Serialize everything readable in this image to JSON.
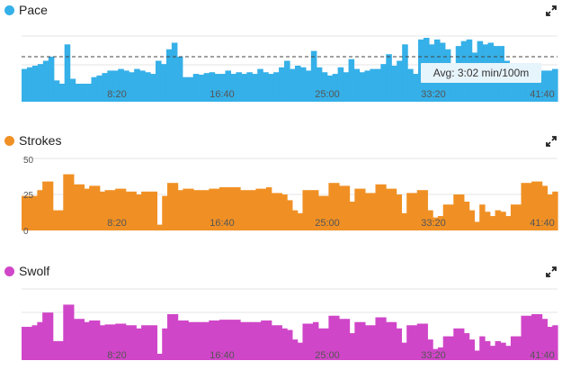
{
  "charts": {
    "pace": {
      "title": "Pace",
      "color": "#35b0e8",
      "avg_label": "Avg: 3:02 min/100m"
    },
    "strokes": {
      "title": "Strokes",
      "color": "#f09024"
    },
    "swolf": {
      "title": "Swolf",
      "color": "#d046c8"
    }
  },
  "x_ticks": [
    "8:20",
    "16:40",
    "25:00",
    "33:20",
    "41:40"
  ],
  "strokes_yticks": [
    "50",
    "25",
    "0"
  ],
  "icons": {
    "expand": "expand-arrows-icon"
  },
  "chart_data": [
    {
      "type": "area",
      "title": "Pace",
      "x_tick_labels": [
        "8:20",
        "16:40",
        "25:00",
        "33:20",
        "41:40"
      ],
      "annotation": "Avg: 3:02 min/100m",
      "series": [
        {
          "values": [
            40,
            42,
            44,
            46,
            50,
            55,
            26,
            22,
            70,
            28,
            22,
            22,
            22,
            30,
            32,
            35,
            38,
            38,
            40,
            38,
            36,
            40,
            38,
            36,
            34,
            50,
            46,
            64,
            72,
            55,
            30,
            30,
            34,
            33,
            35,
            36,
            34,
            34,
            38,
            34,
            36,
            34,
            36,
            34,
            40,
            36,
            34,
            36,
            42,
            50,
            40,
            44,
            42,
            38,
            62,
            42,
            36,
            32,
            34,
            42,
            36,
            52,
            40,
            36,
            38,
            40,
            40,
            46,
            58,
            44,
            50,
            70,
            40,
            34,
            76,
            78,
            70,
            76,
            72,
            64,
            44,
            68,
            74,
            76,
            60,
            74,
            70,
            72,
            68,
            68,
            50,
            44,
            34,
            34,
            36,
            38,
            34,
            38,
            38,
            40
          ]
        }
      ],
      "y_range": [
        0,
        100
      ],
      "avg": 55
    },
    {
      "type": "bar",
      "title": "Strokes",
      "x_tick_labels": [
        "8:20",
        "16:40",
        "25:00",
        "33:20",
        "41:40"
      ],
      "y_ticks": [
        "50",
        "25",
        "0"
      ],
      "ylim": [
        0,
        50
      ],
      "series": [
        {
          "values": [
            24,
            24,
            24,
            28,
            34,
            34,
            14,
            14,
            39,
            39,
            32,
            32,
            29,
            31,
            31,
            27,
            28,
            28,
            29,
            29,
            27,
            27,
            25,
            27,
            27,
            27,
            4,
            24,
            33,
            33,
            28,
            29,
            29,
            28,
            28,
            28,
            29,
            29,
            30,
            30,
            30,
            30,
            28,
            28,
            28,
            29,
            29,
            30,
            26,
            26,
            25,
            21,
            14,
            12,
            28,
            28,
            28,
            24,
            24,
            33,
            33,
            31,
            31,
            20,
            29,
            29,
            26,
            26,
            32,
            32,
            29,
            29,
            25,
            12,
            26,
            26,
            28,
            28,
            14,
            9,
            10,
            18,
            18,
            25,
            25,
            20,
            14,
            6,
            18,
            13,
            10,
            14,
            13,
            10,
            18,
            18,
            33,
            33,
            34,
            34,
            31,
            25,
            27
          ]
        }
      ]
    },
    {
      "type": "bar",
      "title": "Swolf",
      "x_tick_labels": [
        "8:20",
        "16:40",
        "25:00",
        "33:20",
        "41:40"
      ],
      "series": [
        {
          "values": [
            42,
            42,
            44,
            48,
            60,
            60,
            24,
            24,
            70,
            70,
            52,
            52,
            48,
            50,
            50,
            44,
            45,
            45,
            46,
            46,
            44,
            44,
            40,
            44,
            44,
            44,
            8,
            40,
            58,
            58,
            50,
            50,
            48,
            48,
            48,
            48,
            50,
            50,
            51,
            51,
            51,
            51,
            48,
            48,
            48,
            48,
            50,
            50,
            44,
            44,
            40,
            38,
            26,
            22,
            46,
            46,
            48,
            40,
            40,
            56,
            56,
            52,
            52,
            34,
            48,
            48,
            44,
            44,
            54,
            54,
            48,
            48,
            40,
            22,
            44,
            44,
            46,
            46,
            26,
            14,
            16,
            30,
            30,
            40,
            40,
            34,
            26,
            12,
            30,
            24,
            18,
            24,
            22,
            18,
            30,
            30,
            56,
            56,
            58,
            58,
            52,
            42,
            44
          ]
        }
      ],
      "y_range": [
        0,
        100
      ]
    }
  ]
}
